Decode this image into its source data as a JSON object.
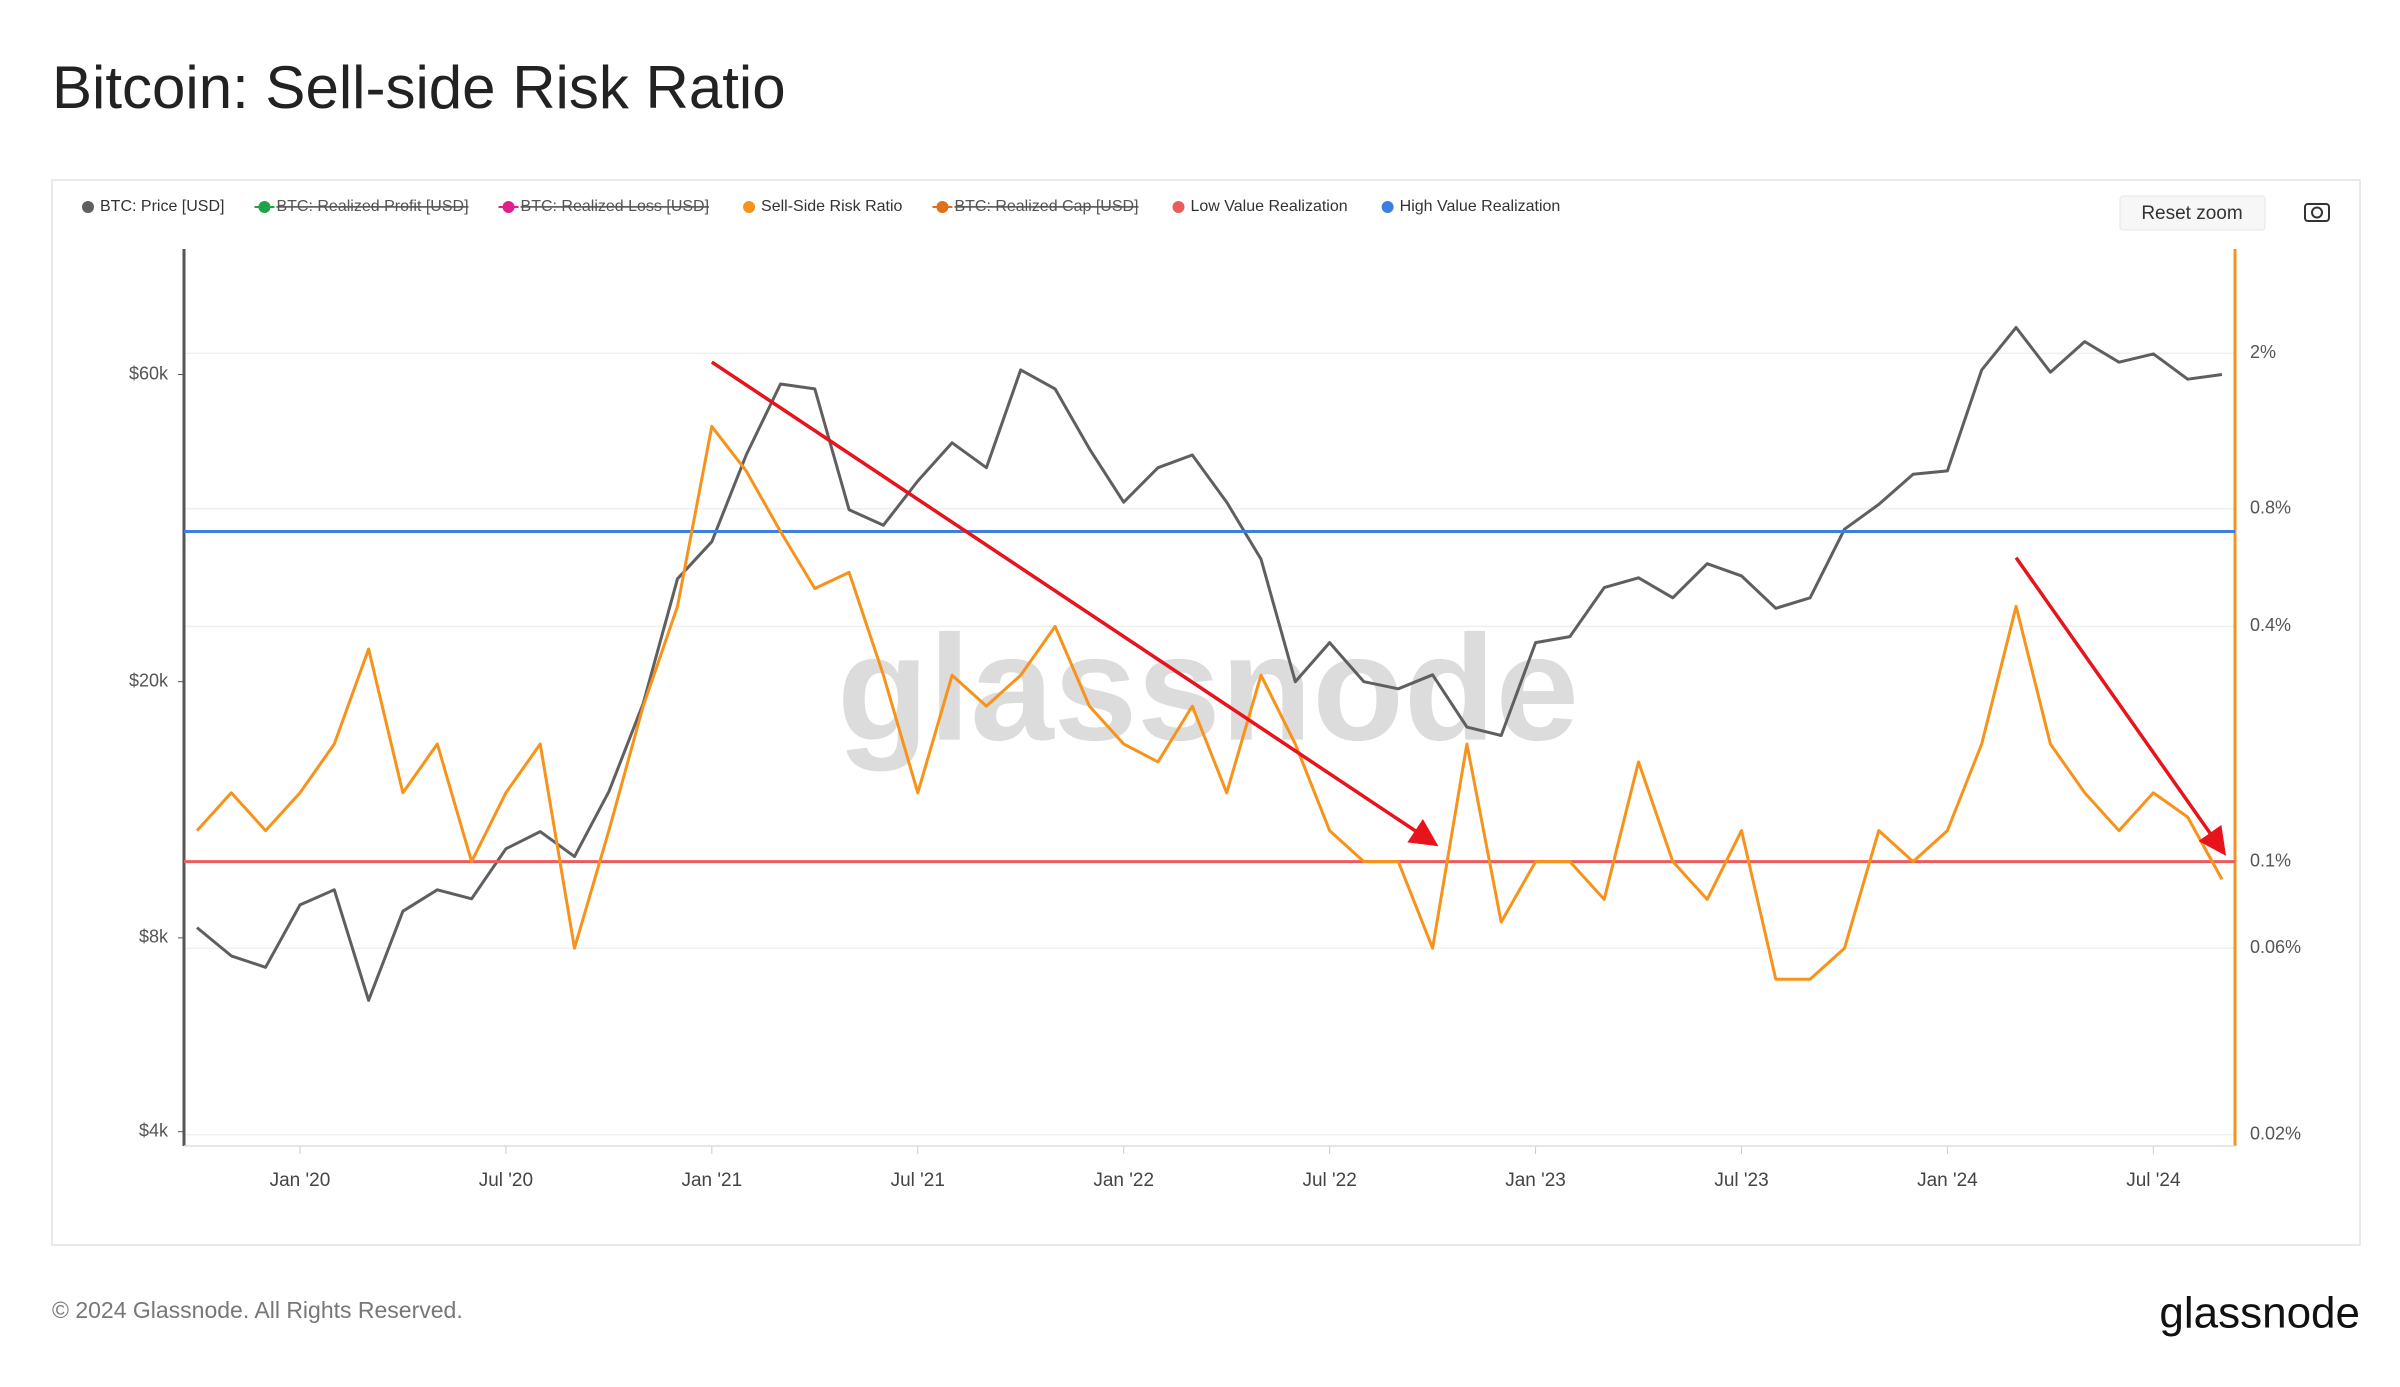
{
  "chart_data": {
    "type": "line",
    "title": "Bitcoin: Sell-side Risk Ratio",
    "x": [
      "2019-10",
      "2019-11",
      "2019-12",
      "2020-01",
      "2020-02",
      "2020-03",
      "2020-04",
      "2020-05",
      "2020-06",
      "2020-07",
      "2020-08",
      "2020-09",
      "2020-10",
      "2020-11",
      "2020-12",
      "2021-01",
      "2021-02",
      "2021-03",
      "2021-04",
      "2021-05",
      "2021-06",
      "2021-07",
      "2021-08",
      "2021-09",
      "2021-10",
      "2021-11",
      "2021-12",
      "2022-01",
      "2022-02",
      "2022-03",
      "2022-04",
      "2022-05",
      "2022-06",
      "2022-07",
      "2022-08",
      "2022-09",
      "2022-10",
      "2022-11",
      "2022-12",
      "2023-01",
      "2023-02",
      "2023-03",
      "2023-04",
      "2023-05",
      "2023-06",
      "2023-07",
      "2023-08",
      "2023-09",
      "2023-10",
      "2023-11",
      "2023-12",
      "2024-01",
      "2024-02",
      "2024-03",
      "2024-04",
      "2024-05",
      "2024-06",
      "2024-07",
      "2024-08",
      "2024-09"
    ],
    "xlim": [
      "2019-10",
      "2024-09"
    ],
    "xticks": [
      {
        "value": "2020-01",
        "label": "Jan '20"
      },
      {
        "value": "2020-07",
        "label": "Jul '20"
      },
      {
        "value": "2021-01",
        "label": "Jan '21"
      },
      {
        "value": "2021-07",
        "label": "Jul '21"
      },
      {
        "value": "2022-01",
        "label": "Jan '22"
      },
      {
        "value": "2022-07",
        "label": "Jul '22"
      },
      {
        "value": "2023-01",
        "label": "Jan '23"
      },
      {
        "value": "2023-07",
        "label": "Jul '23"
      },
      {
        "value": "2024-01",
        "label": "Jan '24"
      },
      {
        "value": "2024-07",
        "label": "Jul '24"
      }
    ],
    "ylim": [
      3800,
      94000
    ],
    "y_log": true,
    "yticks": [
      {
        "value": 4000,
        "label": "$4k"
      },
      {
        "value": 8000,
        "label": "$8k"
      },
      {
        "value": 20000,
        "label": "$20k"
      },
      {
        "value": 60000,
        "label": "$60k"
      }
    ],
    "y2lim": [
      0.0187,
      3.7
    ],
    "y2_log": true,
    "y2ticks": [
      {
        "value": 0.02,
        "label": "0.02%"
      },
      {
        "value": 0.06,
        "label": "0.06%"
      },
      {
        "value": 0.1,
        "label": "0.1%"
      },
      {
        "value": 0.4,
        "label": "0.4%"
      },
      {
        "value": 0.8,
        "label": "0.8%"
      },
      {
        "value": 2,
        "label": "2%"
      }
    ],
    "grid": true,
    "series": [
      {
        "name": "BTC: Price [USD]",
        "color": "#5f5f5f",
        "axis": "y",
        "visible": true,
        "values": [
          8300,
          7500,
          7200,
          9000,
          9500,
          6400,
          8800,
          9500,
          9200,
          11000,
          11700,
          10700,
          13500,
          18500,
          28900,
          33000,
          45000,
          58000,
          57000,
          37000,
          35000,
          41000,
          47000,
          43000,
          61000,
          57000,
          46000,
          38000,
          43000,
          45000,
          38000,
          31000,
          20000,
          23000,
          20000,
          19500,
          20500,
          17000,
          16500,
          23000,
          23500,
          28000,
          29000,
          27000,
          30500,
          29200,
          26000,
          27000,
          34500,
          37700,
          42000,
          42500,
          61000,
          71000,
          60500,
          67500,
          62700,
          64600,
          59000,
          60000
        ]
      },
      {
        "name": "BTC: Realized Profit [USD]",
        "color": "#1fa34a",
        "visible": false
      },
      {
        "name": "BTC: Realized Loss [USD]",
        "color": "#e0218a",
        "visible": false
      },
      {
        "name": "Sell-Side Risk Ratio",
        "color": "#f7931a",
        "axis": "y2",
        "visible": true,
        "values": [
          0.12,
          0.15,
          0.12,
          0.15,
          0.2,
          0.35,
          0.15,
          0.2,
          0.1,
          0.15,
          0.2,
          0.06,
          0.12,
          0.25,
          0.45,
          1.3,
          1.0,
          0.7,
          0.5,
          0.55,
          0.3,
          0.15,
          0.3,
          0.25,
          0.3,
          0.4,
          0.25,
          0.2,
          0.18,
          0.25,
          0.15,
          0.3,
          0.2,
          0.12,
          0.1,
          0.1,
          0.06,
          0.2,
          0.07,
          0.1,
          0.1,
          0.08,
          0.18,
          0.1,
          0.08,
          0.12,
          0.05,
          0.05,
          0.06,
          0.12,
          0.1,
          0.12,
          0.2,
          0.45,
          0.2,
          0.15,
          0.12,
          0.15,
          0.13,
          0.09
        ]
      },
      {
        "name": "BTC: Realized Cap [USD]",
        "color": "#e0701a",
        "visible": false
      },
      {
        "name": "Low Value Realization",
        "color": "#e85c5c",
        "axis": "y2",
        "visible": true,
        "value": 0.1
      },
      {
        "name": "High Value Realization",
        "color": "#3d7fe0",
        "axis": "y2",
        "visible": true,
        "value": 0.7
      }
    ],
    "arrows": [
      {
        "x1": "2021-01",
        "y1": 1.9,
        "x2": "2022-10",
        "y2": 0.112,
        "axis": "y2",
        "color": "#e8141b"
      },
      {
        "x1": "2024-03",
        "y1": 0.6,
        "x2": "2024-09",
        "y2": 0.107,
        "axis": "y2",
        "color": "#e8141b"
      }
    ]
  },
  "watermark": "glassnode",
  "ui": {
    "reset_zoom": "Reset zoom"
  },
  "footer": {
    "copyright": "© 2024 Glassnode. All Rights Reserved.",
    "logo": "glassnode"
  }
}
